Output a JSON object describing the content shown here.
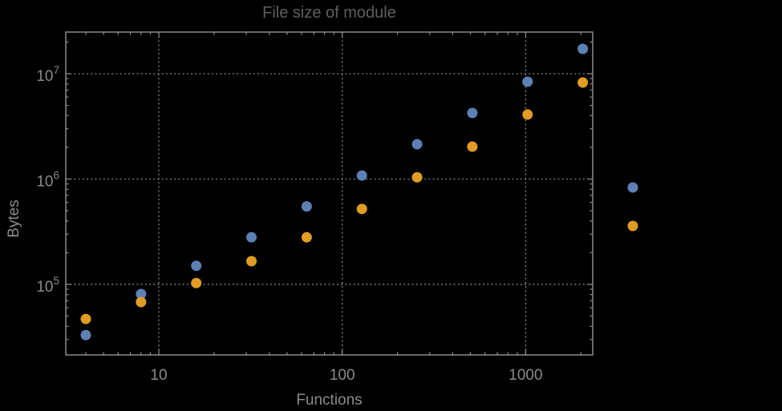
{
  "title": "File size of module",
  "background_color": "#000000",
  "frame_color": "#8c8c8c",
  "grid_color": "#848484",
  "tick_label_color": "#8a8a8a",
  "title_color": "#5f5f5f",
  "chart_data": {
    "type": "scatter",
    "title": "File size of module",
    "xlabel": "Functions",
    "ylabel": "Bytes",
    "x_scale": "log",
    "y_scale": "log",
    "xlim": [
      3.11,
      2320
    ],
    "ylim": [
      21400,
      24860000
    ],
    "x_major_ticks": [
      10,
      100,
      1000
    ],
    "x_tick_labels": [
      "10",
      "100",
      "1000"
    ],
    "y_major_ticks": [
      100000,
      1000000,
      10000000
    ],
    "y_tick_exponents": [
      "5",
      "6",
      "7"
    ],
    "y_tick_base": "10",
    "grid": "dotted-at-decades",
    "x": [
      4,
      8,
      16,
      32,
      64,
      128,
      256,
      512,
      1024,
      2048
    ],
    "series": [
      {
        "name": "series-1-blue",
        "color": "#5E81B5",
        "values": [
          33000,
          81000,
          150000,
          280000,
          550000,
          1080000,
          2140000,
          4240000,
          8400000,
          17200000
        ]
      },
      {
        "name": "series-2-orange",
        "color": "#E19C24",
        "values": [
          47000,
          68000,
          103000,
          166000,
          280000,
          520000,
          1040000,
          2030000,
          4100000,
          8250000
        ]
      }
    ],
    "legend": {
      "position": "outside-right",
      "labels_visible": false,
      "markers": [
        {
          "series": "series-1-blue",
          "color": "#5E81B5"
        },
        {
          "series": "series-2-orange",
          "color": "#E19C24"
        }
      ]
    }
  }
}
